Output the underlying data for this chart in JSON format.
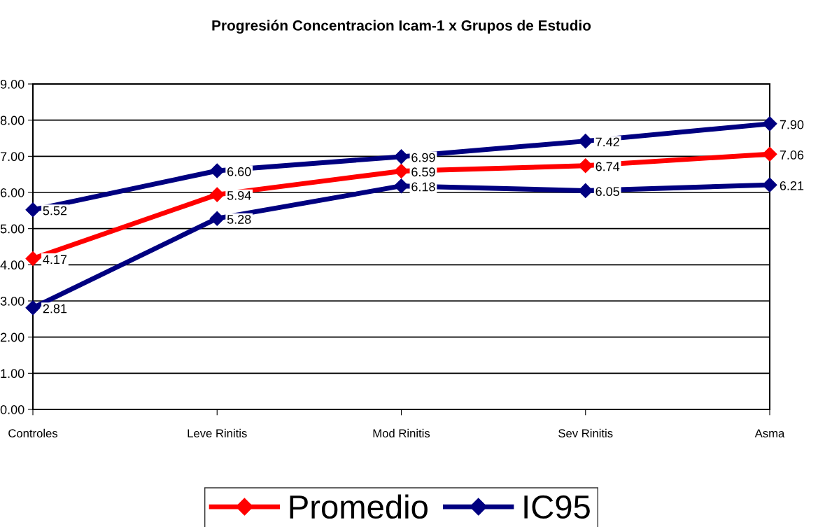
{
  "chart_data": {
    "type": "line",
    "title": "Progresión Concentracion Icam-1 x Grupos de Estudio",
    "categories": [
      "Controles",
      "Leve Rinitis",
      "Mod Rinitis",
      "Sev Rinitis",
      "Asma"
    ],
    "series": [
      {
        "name": "Promedio",
        "color": "#ff0000",
        "values": [
          4.17,
          5.94,
          6.59,
          6.74,
          7.06
        ],
        "value_labels": [
          "4.17",
          "5.94",
          "6.59",
          "6.74",
          "7.06"
        ]
      },
      {
        "name": "IC95",
        "color": "#000080",
        "values": [
          5.52,
          6.6,
          6.99,
          7.42,
          7.9
        ],
        "value_labels": [
          "5.52",
          "6.60",
          "6.99",
          "7.42",
          "7.90"
        ]
      },
      {
        "color": "#000080",
        "values": [
          2.81,
          5.28,
          6.18,
          6.05,
          6.21
        ],
        "value_labels": [
          "2.81",
          "5.28",
          "6.18",
          "6.05",
          "6.21"
        ]
      }
    ],
    "ylim": [
      0,
      9
    ],
    "yticks": [
      {
        "value": 0,
        "label": "0.00"
      },
      {
        "value": 1,
        "label": "1.00"
      },
      {
        "value": 2,
        "label": "2.00"
      },
      {
        "value": 3,
        "label": "3.00"
      },
      {
        "value": 4,
        "label": "4.00"
      },
      {
        "value": 5,
        "label": "5.00"
      },
      {
        "value": 6,
        "label": "6.00"
      },
      {
        "value": 7,
        "label": "7.00"
      },
      {
        "value": 8,
        "label": "8.00"
      },
      {
        "value": 9,
        "label": "9.00"
      }
    ],
    "grid": "y",
    "legend": "bottom",
    "marker": "diamond",
    "line_style": "solid"
  }
}
